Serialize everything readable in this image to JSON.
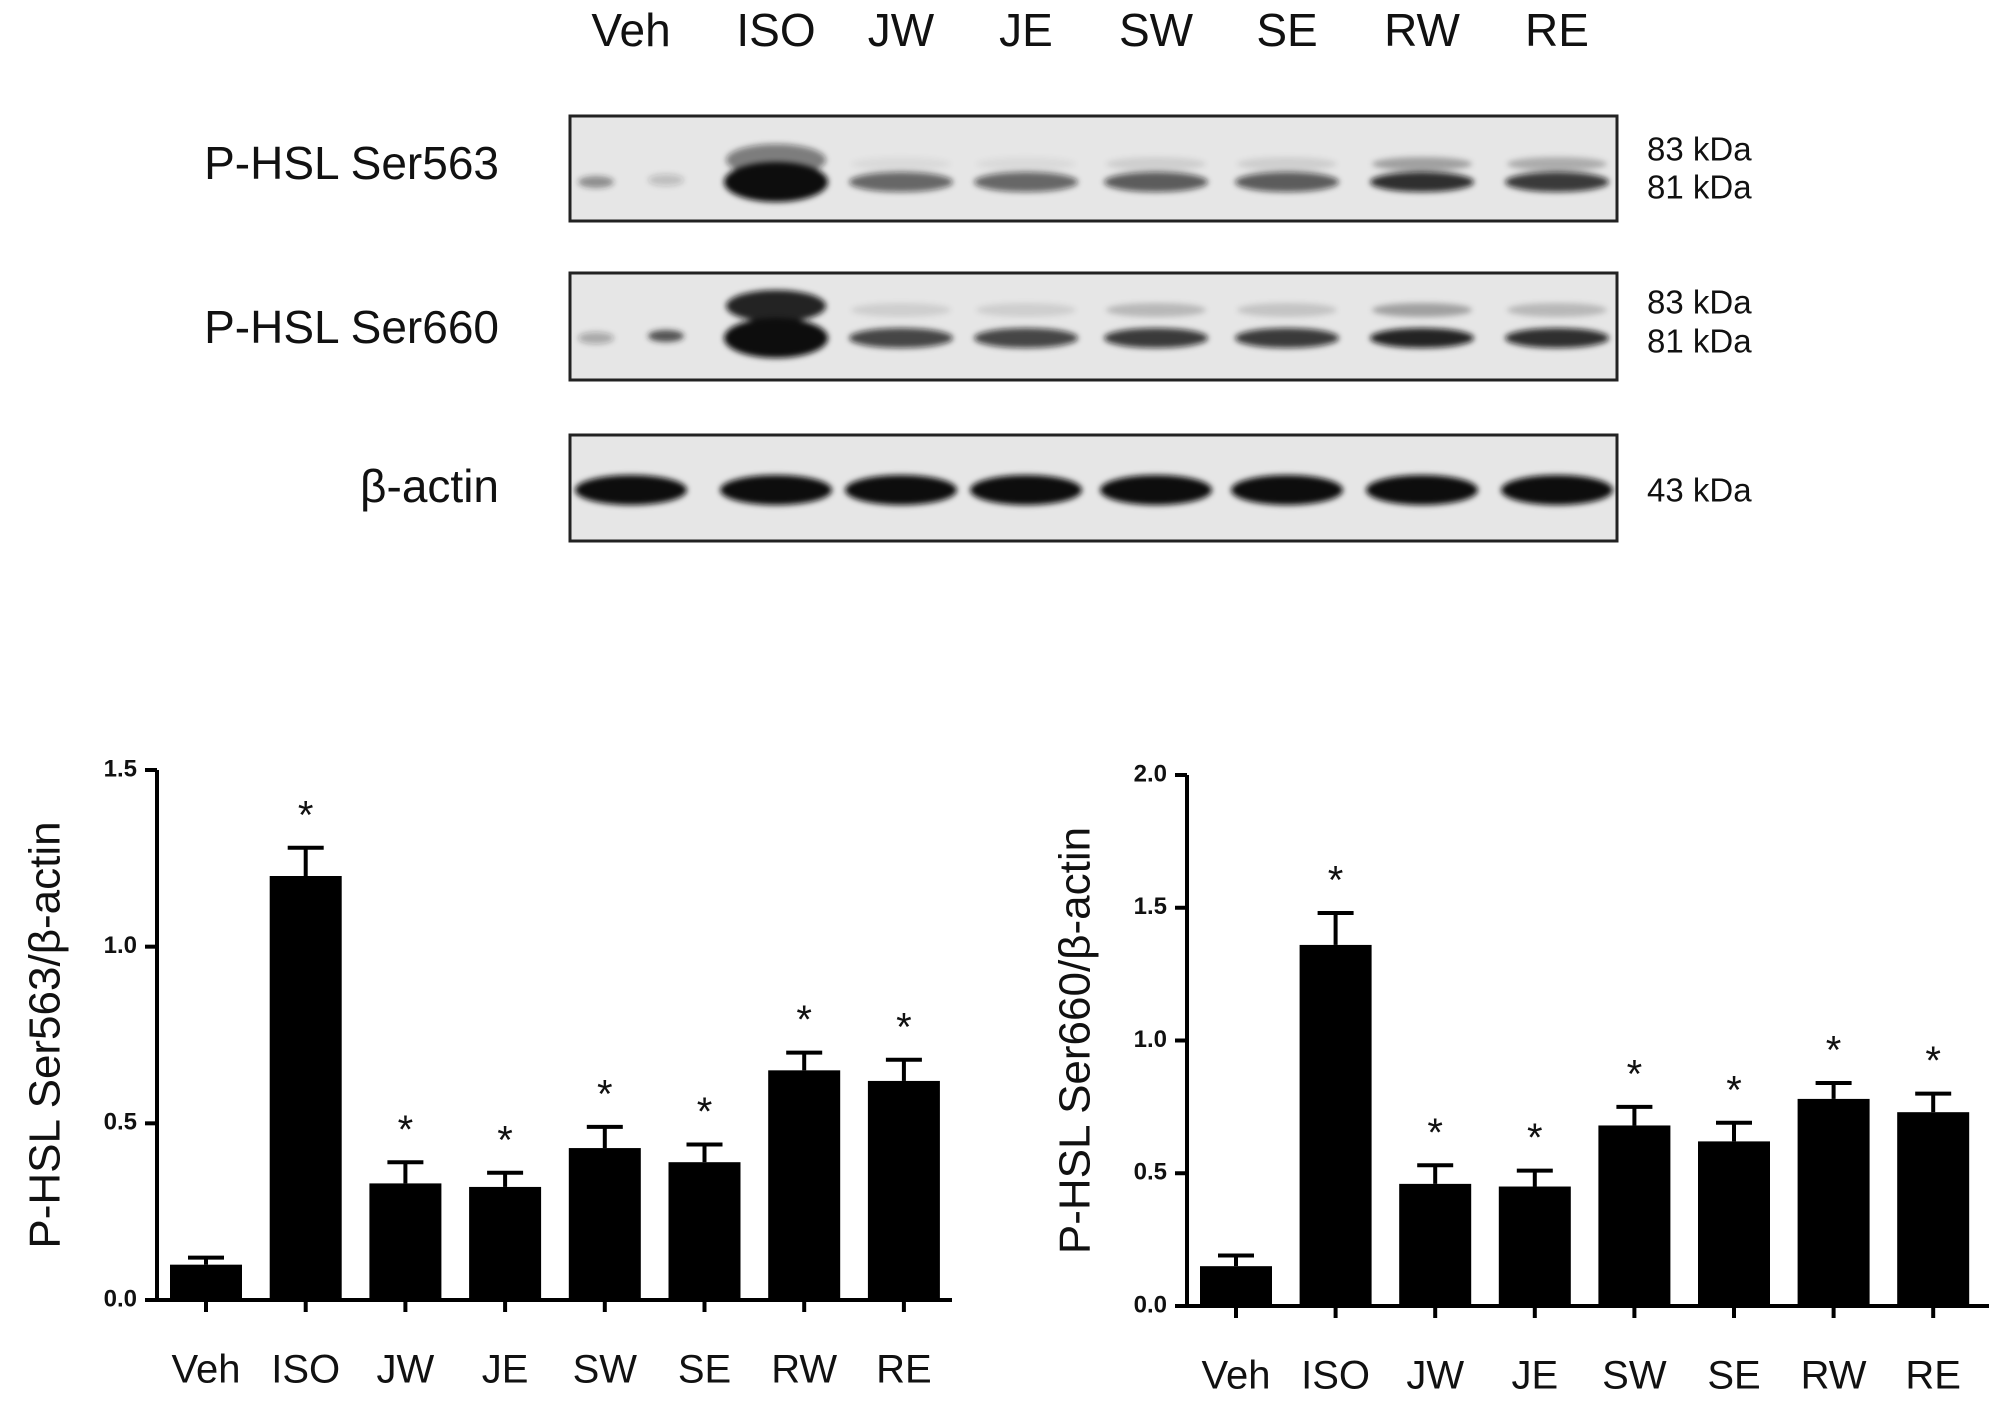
{
  "blot": {
    "lanes": [
      "Veh",
      "ISO",
      "JW",
      "JE",
      "SW",
      "SE",
      "RW",
      "RE"
    ],
    "rows": [
      {
        "label": "P-HSL Ser563",
        "markers": [
          "83 kDa",
          "81 kDa"
        ]
      },
      {
        "label": "P-HSL Ser660",
        "markers": [
          "83 kDa",
          "81 kDa"
        ]
      },
      {
        "label": "β-actin",
        "markers": [
          "43 kDa"
        ]
      }
    ]
  },
  "chart_data": [
    {
      "type": "bar",
      "y_label": "P-HSL Ser563/β-actin",
      "categories": [
        "Veh",
        "ISO",
        "JW",
        "JE",
        "SW",
        "SE",
        "RW",
        "RE"
      ],
      "values": [
        0.1,
        1.2,
        0.33,
        0.32,
        0.43,
        0.39,
        0.65,
        0.62
      ],
      "errors": [
        0.02,
        0.08,
        0.06,
        0.04,
        0.06,
        0.05,
        0.05,
        0.06
      ],
      "significance": [
        null,
        "*",
        "*",
        "*",
        "*",
        "*",
        "*",
        "*"
      ],
      "color": "#000000",
      "ylim": [
        0,
        1.5
      ],
      "yticks": [
        {
          "value": 0,
          "label": "0.0"
        },
        0.5,
        {
          "value": 1,
          "label": "1.0"
        },
        1.5
      ]
    },
    {
      "type": "bar",
      "y_label": "P-HSL Ser660/β-actin",
      "categories": [
        "Veh",
        "ISO",
        "JW",
        "JE",
        "SW",
        "SE",
        "RW",
        "RE"
      ],
      "values": [
        0.15,
        1.36,
        0.46,
        0.45,
        0.68,
        0.62,
        0.78,
        0.73
      ],
      "errors": [
        0.04,
        0.12,
        0.07,
        0.06,
        0.07,
        0.07,
        0.06,
        0.07
      ],
      "significance": [
        null,
        "*",
        "*",
        "*",
        "*",
        "*",
        "*",
        "*"
      ],
      "color": "#000000",
      "ylim": [
        0,
        2
      ],
      "yticks": [
        {
          "value": 0,
          "label": "0.0"
        },
        0.5,
        {
          "value": 1,
          "label": "1.0"
        },
        1.5,
        {
          "value": 2,
          "label": "2.0"
        }
      ]
    }
  ]
}
